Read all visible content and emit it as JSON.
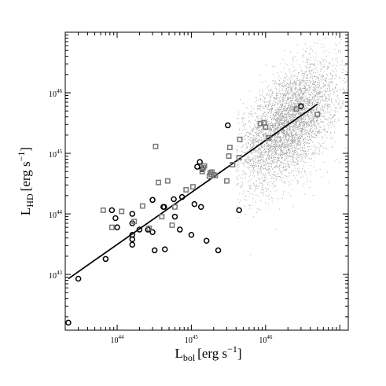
{
  "chart_data": {
    "type": "scatter",
    "title": "",
    "xlabel": {
      "main": "L",
      "sub": "bol",
      "unit": "[erg s",
      "unit_exp": "−1",
      "unit_end": "]"
    },
    "ylabel": {
      "main": "L",
      "sub": "HD",
      "unit": "[erg s",
      "unit_exp": "−1",
      "unit_end": "]"
    },
    "x_scale": "log",
    "y_scale": "log",
    "xlim": [
      2e+43,
      1.3e+47
    ],
    "ylim": [
      1.2e+42,
      1e+47
    ],
    "x_ticks": [
      {
        "value": 1e+44,
        "base": "10",
        "exp": "44"
      },
      {
        "value": 1e+45,
        "base": "10",
        "exp": "45"
      },
      {
        "value": 1e+46,
        "base": "10",
        "exp": "46"
      }
    ],
    "y_ticks": [
      {
        "value": 1e+43,
        "base": "10",
        "exp": "43"
      },
      {
        "value": 1e+44,
        "base": "10",
        "exp": "44"
      },
      {
        "value": 1e+45,
        "base": "10",
        "exp": "45"
      },
      {
        "value": 1e+46,
        "base": "10",
        "exp": "46"
      }
    ],
    "grid": false,
    "legend": "none",
    "colors": {
      "circles": "#000000",
      "squares": "#777777",
      "cloud": "#9a9a9a",
      "fit": "#000000"
    },
    "background_cloud": {
      "center": [
        2e+46,
        3e+45
      ],
      "spread_dex": [
        0.33,
        0.55
      ],
      "points": 4500,
      "x_min": 4e+45
    },
    "fit_line": {
      "x": [
        2.2e+43,
        5e+46
      ],
      "y": [
        8.5e+42,
        6.5e+45
      ]
    },
    "series": [
      {
        "marker": "circle",
        "x": [
          2.2e+43,
          3e+43,
          7e+43,
          8.5e+43,
          9.5e+43,
          1e+44,
          1.6e+44,
          1.6e+44,
          1.6e+44,
          1.6e+44,
          1.6e+44,
          2e+44,
          2.6e+44,
          3e+44,
          3e+44,
          3.2e+44,
          4.2e+44,
          4.3e+44,
          4.4e+44,
          5.8e+44,
          6e+44,
          7e+44,
          7.5e+44,
          1e+45,
          1.1e+45,
          1.2e+45,
          1.3e+45,
          1.35e+45,
          1.4e+45,
          1.6e+45,
          2.3e+45,
          3.1e+45,
          4.4e+45,
          3e+46
        ],
        "y": [
          1.6e+42,
          8.5e+42,
          1.8e+43,
          1.15e+44,
          8.5e+43,
          6e+43,
          7e+43,
          4.5e+43,
          3.8e+43,
          3.1e+43,
          1e+44,
          5.5e+43,
          5.5e+43,
          1.7e+44,
          5e+43,
          2.5e+43,
          1.3e+44,
          1.3e+44,
          2.6e+43,
          1.75e+44,
          9e+43,
          5.5e+43,
          1.9e+44,
          4.5e+43,
          1.45e+44,
          6e+44,
          7.2e+44,
          1.3e+44,
          5.5e+44,
          3.6e+43,
          2.5e+43,
          2.9e+45,
          1.15e+44,
          6e+45
        ]
      },
      {
        "marker": "square",
        "x": [
          6.5e+43,
          8.5e+43,
          1.15e+44,
          1.7e+44,
          2.2e+44,
          2.7e+44,
          3.3e+44,
          3.6e+44,
          4e+44,
          4.8e+44,
          5.5e+44,
          6e+44,
          8.5e+44,
          1.05e+45,
          1.4e+45,
          1.45e+45,
          1.5e+45,
          1.75e+45,
          1.8e+45,
          1.85e+45,
          1.9e+45,
          2e+45,
          2.1e+45,
          3e+45,
          3.2e+45,
          3.3e+45,
          3.6e+45,
          4.4e+45,
          4.5e+45,
          8.5e+45,
          9.5e+45,
          1e+46,
          1.1e+46,
          2.6e+46,
          5e+46
        ],
        "y": [
          1.15e+44,
          6e+43,
          1.1e+44,
          7.5e+43,
          1.35e+44,
          5.8e+43,
          1.3e+45,
          3.3e+44,
          9e+43,
          3.5e+44,
          6.5e+43,
          1.3e+44,
          2.5e+44,
          2.8e+44,
          5e+44,
          5.8e+44,
          6.2e+44,
          4.2e+44,
          4.8e+44,
          4.5e+44,
          4.9e+44,
          4.4e+44,
          4.3e+44,
          3.5e+44,
          9e+44,
          1.25e+45,
          6.5e+44,
          8.5e+44,
          1.7e+45,
          3.1e+45,
          3.2e+45,
          2.7e+45,
          1.8e+45,
          5.4e+45,
          4.4e+45
        ]
      }
    ]
  }
}
